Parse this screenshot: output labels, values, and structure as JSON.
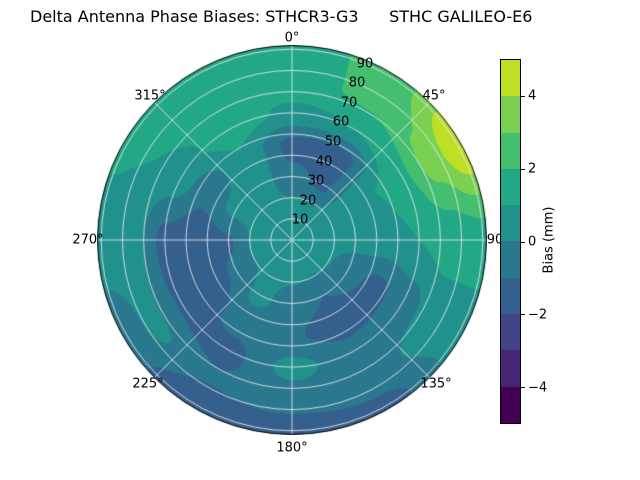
{
  "chart_data": {
    "type": "heatmap",
    "projection": "polar",
    "title": "Delta Antenna Phase Biases: STHCR3-G3      STHC GALILEO-E6",
    "colorbar": {
      "label": "Bias (mm)",
      "range": [
        -5,
        5
      ],
      "ticks": [
        -4,
        -2,
        0,
        2,
        4
      ],
      "tick_labels": [
        "−4",
        "−2",
        "0",
        "2",
        "4"
      ],
      "n_levels": 10,
      "colors": [
        "#440154",
        "#482475",
        "#414487",
        "#355f8d",
        "#2a788e",
        "#21918c",
        "#22a884",
        "#44bf70",
        "#7ad151",
        "#bddf26"
      ]
    },
    "azimuth_tick_labels": [
      "0°",
      "45°",
      "90",
      "135°",
      "180°",
      "225°",
      "270°",
      "315°"
    ],
    "radial_ticks": [
      10,
      20,
      30,
      40,
      50,
      60,
      70,
      80,
      90
    ],
    "radial_tick_labels": [
      "10",
      "20",
      "30",
      "40",
      "50",
      "60",
      "70",
      "80",
      "90"
    ],
    "grid": {
      "r_max": 92,
      "azimuth_deg": [
        0,
        30,
        60,
        90,
        120,
        150,
        180,
        210,
        240,
        270,
        300,
        330
      ],
      "radius": [
        0,
        15,
        30,
        45,
        60,
        75,
        90
      ],
      "bias_mm": [
        [
          0.5,
          0.3,
          -0.8,
          -1.3,
          0.8,
          1.6,
          1.3
        ],
        [
          0.5,
          0.2,
          -1.2,
          -1.5,
          1.0,
          2.2,
          2.4
        ],
        [
          0.5,
          0.5,
          0.6,
          1.0,
          1.8,
          3.4,
          4.8
        ],
        [
          0.5,
          0.6,
          0.3,
          0.6,
          1.0,
          1.4,
          1.6
        ],
        [
          0.5,
          0.4,
          -0.6,
          -1.3,
          -0.5,
          0.5,
          0.4
        ],
        [
          0.5,
          0.2,
          -1.0,
          -1.5,
          -0.6,
          -0.4,
          -1.3
        ],
        [
          0.5,
          0.4,
          -0.6,
          -0.9,
          0.3,
          -0.5,
          -1.6
        ],
        [
          0.5,
          0.5,
          0.3,
          -0.6,
          -1.3,
          -0.9,
          -1.7
        ],
        [
          0.5,
          0.3,
          -0.9,
          -1.5,
          -1.1,
          0.3,
          -0.6
        ],
        [
          0.5,
          0.4,
          -1.1,
          -1.7,
          -1.3,
          0.4,
          0.7
        ],
        [
          0.5,
          0.5,
          0.3,
          -0.7,
          0.5,
          1.0,
          1.1
        ],
        [
          0.5,
          0.4,
          0.5,
          0.8,
          1.5,
          1.8,
          1.0
        ]
      ]
    }
  }
}
